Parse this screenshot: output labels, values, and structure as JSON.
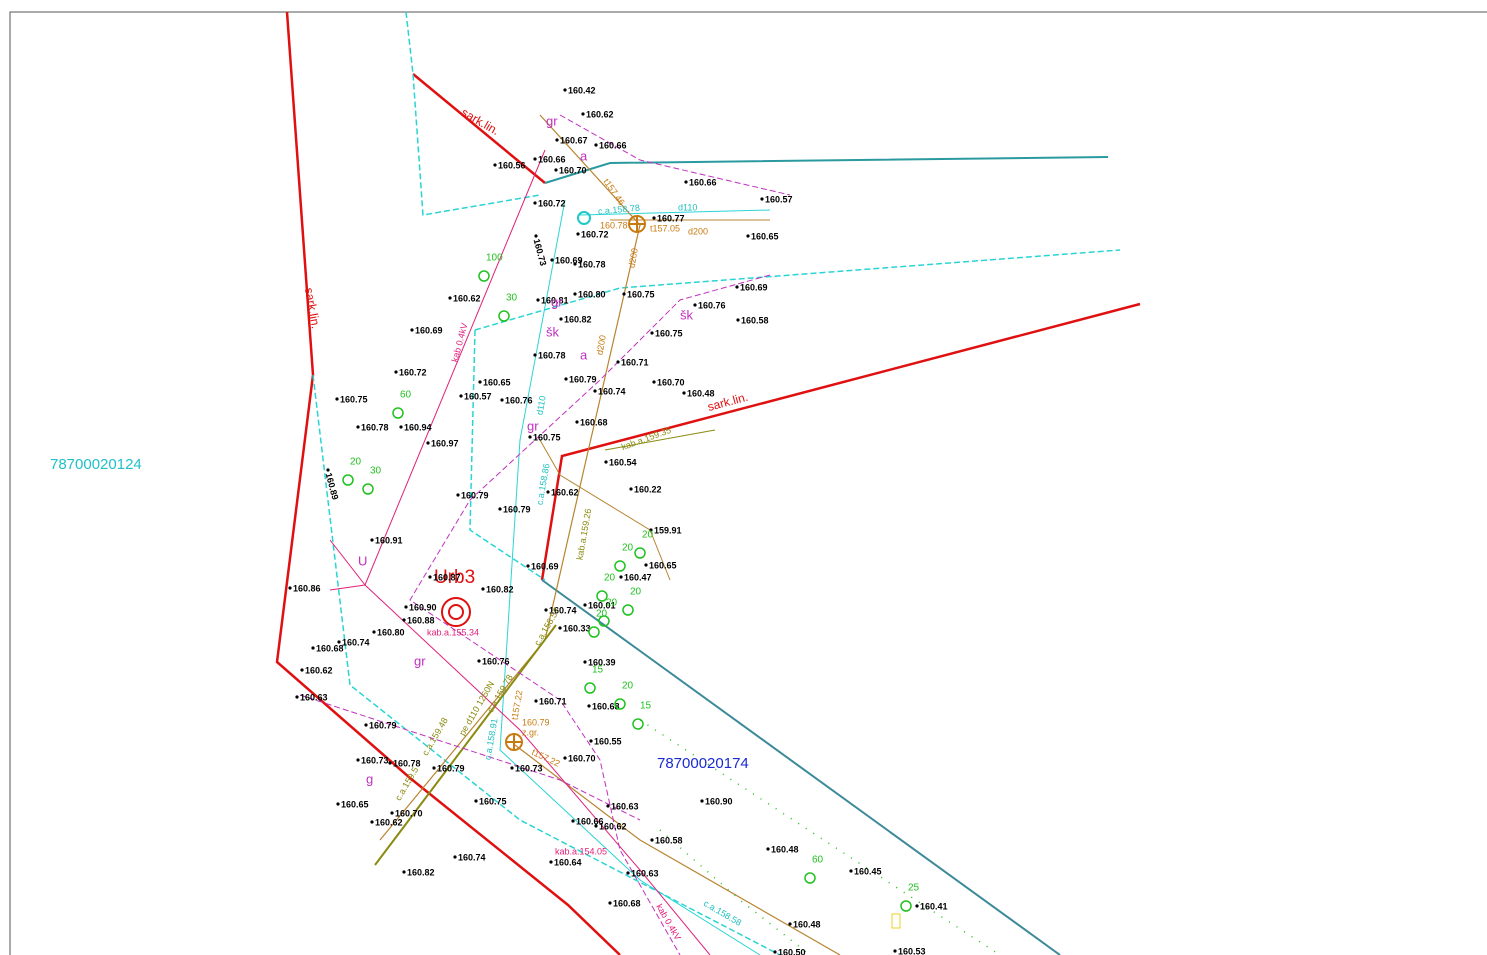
{
  "parcels": [
    "78700020124",
    "78700020174"
  ],
  "zone": "Urb3",
  "boundary_labels": [
    "sark.lin.",
    "sark.lin.",
    "sark.lin."
  ],
  "elevations": [
    "160.42",
    "160.62",
    "160.67",
    "160.66",
    "160.66",
    "160.56",
    "160.70",
    "160.66",
    "160.57",
    "160.72",
    "160.77",
    "160.72",
    "160.65",
    "160.78",
    "160.69",
    "160.75",
    "160.62",
    "160.81",
    "160.80",
    "160.69",
    "160.76",
    "160.58",
    "160.82",
    "160.69",
    "160.75",
    "160.78",
    "160.71",
    "160.72",
    "160.65",
    "160.79",
    "160.74",
    "160.70",
    "160.48",
    "160.75",
    "160.57",
    "160.76",
    "160.78",
    "160.94",
    "160.75",
    "160.68",
    "160.97",
    "160.54",
    "160.22",
    "160.79",
    "160.79",
    "160.62",
    "159.91",
    "160.91",
    "160.65",
    "160.69",
    "160.47",
    "160.87",
    "160.82",
    "160.86",
    "160.90",
    "160.01",
    "160.88",
    "160.74",
    "160.80",
    "160.33",
    "160.74",
    "160.68",
    "160.76",
    "160.39",
    "160.62",
    "160.71",
    "160.68",
    "160.63",
    "160.79",
    "160.55",
    "160.73",
    "160.78",
    "160.79",
    "160.70",
    "160.73",
    "160.65",
    "160.75",
    "160.63",
    "160.70",
    "160.62",
    "160.66",
    "160.62",
    "160.58",
    "160.64",
    "160.74",
    "160.82",
    "160.63",
    "160.68",
    "160.90",
    "160.48",
    "160.45",
    "160.41",
    "160.48",
    "160.53",
    "160.50",
    "160.89",
    "160.73"
  ],
  "utility_labels": [
    "d110",
    "d200",
    "d200",
    "d110",
    "c.a.158.78",
    "t157.46",
    "160.78",
    "t157.05",
    "d200",
    "kab.a.159.35",
    "kab.a.159.26",
    "c.a.158.86",
    "kab.a.155.34",
    "c.a.158.57",
    "c.a.159.78",
    "pe d110 1250N",
    "t157.22",
    "160.79",
    "z.gr.",
    "t157.22",
    "c.a.159.48",
    "c.a.159.5",
    "c.a.158.91",
    "kab.a.154.05",
    "c.a.158.58",
    "kab 0.4kV",
    "kab 0.4kV"
  ],
  "codes": [
    "gr",
    "a",
    "gr",
    "a",
    "šk",
    "šk",
    "gr",
    "gr",
    "g",
    "U"
  ],
  "tree_labels": [
    "100",
    "30",
    "60",
    "20",
    "30",
    "20",
    "20",
    "20",
    "20",
    "20",
    "20",
    "15",
    "20",
    "15",
    "60",
    "25"
  ]
}
